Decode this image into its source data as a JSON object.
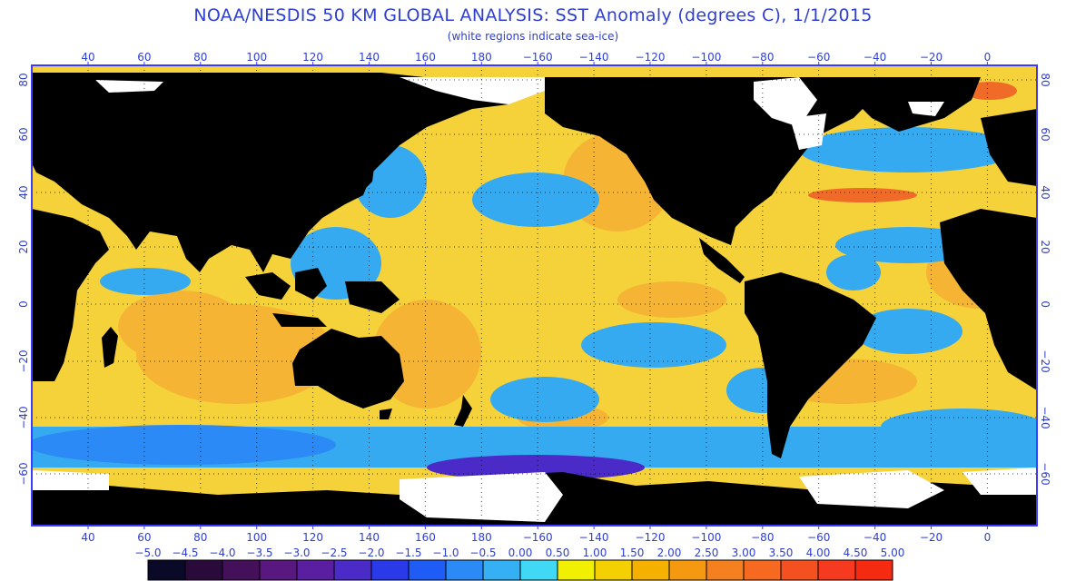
{
  "title": "NOAA/NESDIS 50 KM GLOBAL ANALYSIS: SST Anomaly (degrees C), 1/1/2015",
  "subtitle": "(white regions indicate sea-ice)",
  "axes": {
    "lon_labels": [
      "40",
      "60",
      "80",
      "100",
      "120",
      "140",
      "160",
      "180",
      "−160",
      "−140",
      "−120",
      "−100",
      "−80",
      "−60",
      "−40",
      "−20",
      "0"
    ],
    "lat_labels": [
      "80",
      "60",
      "40",
      "20",
      "0",
      "−20",
      "−40",
      "−60"
    ]
  },
  "colorbar": {
    "labels": [
      "−5.0",
      "−4.5",
      "−4.0",
      "−3.5",
      "−3.0",
      "−2.5",
      "−2.0",
      "−1.5",
      "−1.0",
      "−0.5",
      "0.00",
      "0.50",
      "1.00",
      "1.50",
      "2.00",
      "2.50",
      "3.00",
      "3.50",
      "4.00",
      "4.50",
      "5.00"
    ],
    "colors": [
      "#0a0a28",
      "#2a0a3a",
      "#45105a",
      "#581880",
      "#5a1fa0",
      "#4a2bc8",
      "#2a3ae8",
      "#1f5cf5",
      "#2b8af5",
      "#35b0f5",
      "#40d8f5",
      "#f0f000",
      "#f5d000",
      "#f5b000",
      "#f59a10",
      "#f58020",
      "#f56a20",
      "#f55020",
      "#f53a20",
      "#f52a10"
    ]
  },
  "colors": {
    "land": "#000000",
    "ice": "#ffffff",
    "frame": "#3c3cff",
    "text": "#2f3fd0",
    "ocean_warm": "#f5b434",
    "ocean_neutral": "#f5d23a",
    "ocean_cool": "#35aaf0",
    "ocean_hot": "#f06a28"
  }
}
